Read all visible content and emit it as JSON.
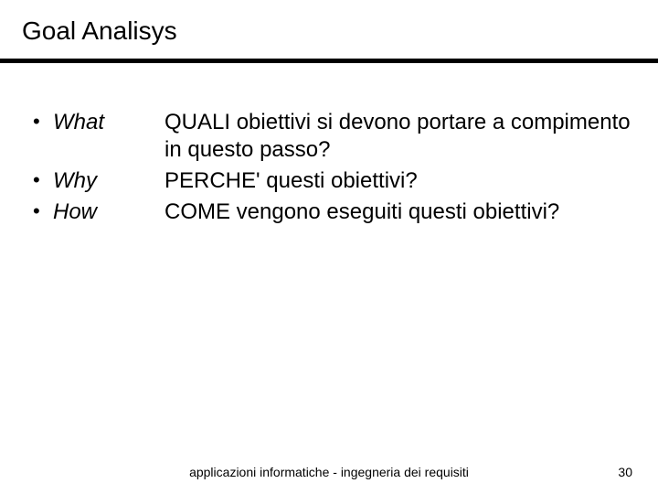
{
  "title": "Goal Analisys",
  "items": [
    {
      "label": "What",
      "desc": "QUALI obiettivi si devono portare a compimento in questo passo?"
    },
    {
      "label": "Why",
      "desc": "PERCHE' questi obiettivi?"
    },
    {
      "label": "How",
      "desc": "COME vengono eseguiti questi obiettivi?"
    }
  ],
  "footer": "applicazioni  informatiche - ingegneria dei requisiti",
  "page_number": "30"
}
